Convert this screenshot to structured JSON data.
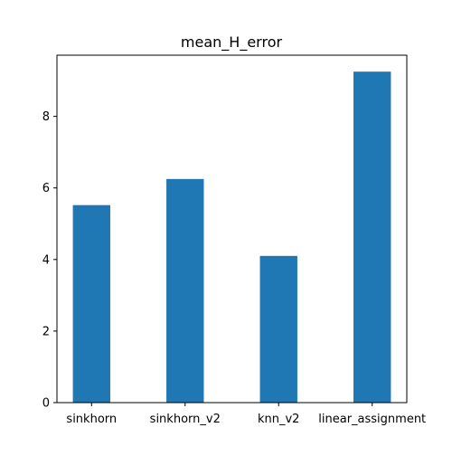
{
  "chart_data": {
    "type": "bar",
    "title": "mean_H_error",
    "xlabel": "",
    "ylabel": "",
    "categories": [
      "sinkhorn",
      "sinkhorn_v2",
      "knn_v2",
      "linear_assignment"
    ],
    "values": [
      5.52,
      6.25,
      4.1,
      9.25
    ],
    "ylim": [
      0,
      9.71
    ],
    "yticks": [
      0,
      2,
      4,
      6,
      8
    ],
    "grid": false,
    "bar_color": "#1f77b4"
  }
}
